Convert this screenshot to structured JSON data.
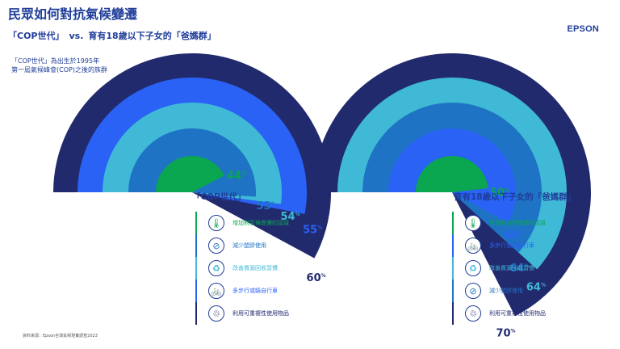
{
  "header": {
    "title": "民眾如何對抗氣候變遷",
    "subtitle_a": "「COP世代」",
    "subtitle_vs": "vs.",
    "subtitle_b": "育有18歲以下子女的「爸媽群」",
    "brand": "EPSON"
  },
  "definition": [
    "「COP世代」為出生於1995年",
    "第一屆氣候峰會(COP)之後的族群"
  ],
  "source": "資料來源：Epson全球氣候現實調查2023",
  "colors": {
    "navy": "#222a6e",
    "blue": "#2962f5",
    "light_blue": "#3fb9d6",
    "mid_blue": "#1f73c4",
    "green": "#0aa650"
  },
  "legend_icons": {
    "icon_0": "globe-thermometer-icon",
    "icon_1": "no-plastic-icon",
    "icon_2": "recycle-icon",
    "icon_3": "bicycle-icon",
    "icon_4": "reuse-hand-icon"
  },
  "chart_data": [
    {
      "type": "radial-bar",
      "label": "「COP世代」",
      "value_unit": "%",
      "series": [
        {
          "name": "增加對氣候變遷的認識",
          "value": 44,
          "color": "#0aa650"
        },
        {
          "name": "減少塑膠使用",
          "value": 53,
          "color": "#1f73c4"
        },
        {
          "name": "改善資源回收習慣",
          "value": 54,
          "color": "#3fb9d6"
        },
        {
          "name": "多步行或騎自行車",
          "value": 55,
          "color": "#2962f5"
        },
        {
          "name": "利用可重複性使用物品",
          "value": 60,
          "color": "#222a6e"
        }
      ]
    },
    {
      "type": "radial-bar",
      "label": "育有18歲以下子女的「爸媽群」",
      "value_unit": "%",
      "series": [
        {
          "name": "增加對氣候變遷的認識",
          "value": 50,
          "color": "#0aa650"
        },
        {
          "name": "多步行或騎自行車",
          "value": 60,
          "color": "#2962f5"
        },
        {
          "name": "改善資源回收習慣",
          "value": 64,
          "color": "#3fb9d6"
        },
        {
          "name": "減少塑膠使用",
          "value": 64,
          "color": "#1f73c4"
        },
        {
          "name": "利用可重複性使用物品",
          "value": 70,
          "color": "#222a6e"
        }
      ]
    }
  ]
}
